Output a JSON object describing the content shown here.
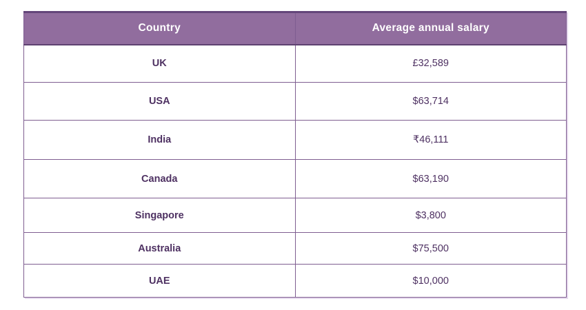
{
  "page": {
    "background": "#ffffff"
  },
  "table": {
    "columns": [
      "Country",
      "Average annual salary"
    ],
    "rows": [
      {
        "country": "UK",
        "salary": "£32,589"
      },
      {
        "country": "USA",
        "salary": "$63,714"
      },
      {
        "country": "India",
        "salary": "₹46,111"
      },
      {
        "country": "Canada",
        "salary": "$63,190"
      },
      {
        "country": "Singapore",
        "salary": "$3,800"
      },
      {
        "country": "Australia",
        "salary": "$75,500"
      },
      {
        "country": "UAE",
        "salary": "$10,000"
      }
    ],
    "colors": {
      "header_background": "#916d9e",
      "header_text": "#ffffff",
      "body_text": "#4e3162",
      "border": "#7e5d90",
      "outer_border_top": "#63467a",
      "outer_shadow": "#e6d9ee"
    }
  },
  "chart_data": {
    "type": "table",
    "columns": [
      "Country",
      "Average annual salary"
    ],
    "rows": [
      [
        "UK",
        "£32,589"
      ],
      [
        "USA",
        "$63,714"
      ],
      [
        "India",
        "₹46,111"
      ],
      [
        "Canada",
        "$63,190"
      ],
      [
        "Singapore",
        "$3,800"
      ],
      [
        "Australia",
        "$75,500"
      ],
      [
        "UAE",
        "$10,000"
      ]
    ],
    "legend": false,
    "grid": true
  }
}
